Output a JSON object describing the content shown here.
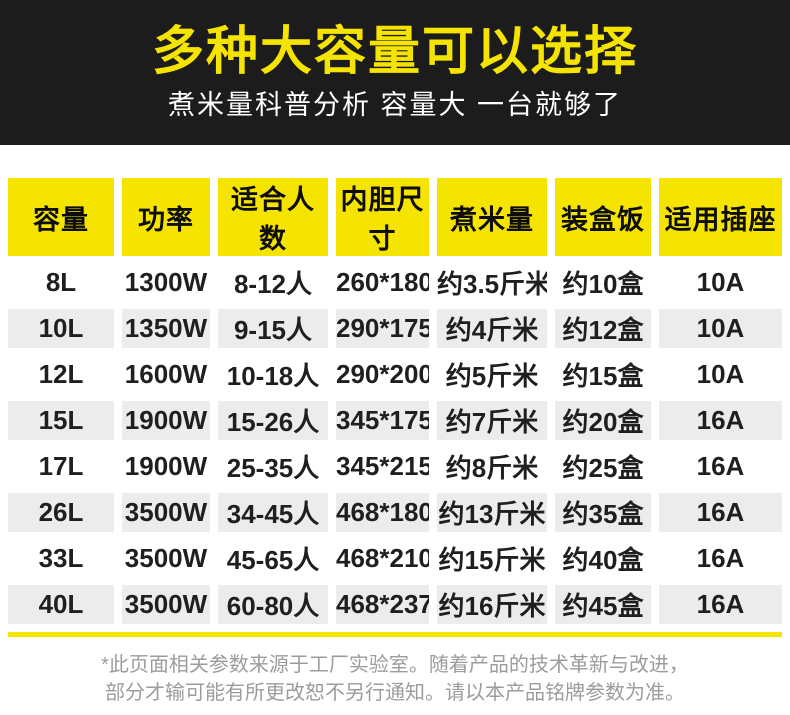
{
  "banner": {
    "title": "多种大容量可以选择",
    "subtitle": "煮米量科普分析 容量大 一台就够了",
    "bg_color": "#1c1c1c",
    "title_color": "#f5e400",
    "subtitle_color": "#ffffff"
  },
  "table": {
    "header_bg_color": "#f5e400",
    "alt_row_color": "#ececec",
    "columns": [
      "容量",
      "功率",
      "适合人数",
      "内胆尺寸",
      "煮米量",
      "装盒饭",
      "适用插座"
    ],
    "rows": [
      [
        "8L",
        "1300W",
        "8-12人",
        "260*180",
        "约3.5斤米",
        "约10盒",
        "10A"
      ],
      [
        "10L",
        "1350W",
        "9-15人",
        "290*175",
        "约4斤米",
        "约12盒",
        "10A"
      ],
      [
        "12L",
        "1600W",
        "10-18人",
        "290*200",
        "约5斤米",
        "约15盒",
        "10A"
      ],
      [
        "15L",
        "1900W",
        "15-26人",
        "345*175",
        "约7斤米",
        "约20盒",
        "16A"
      ],
      [
        "17L",
        "1900W",
        "25-35人",
        "345*215",
        "约8斤米",
        "约25盒",
        "16A"
      ],
      [
        "26L",
        "3500W",
        "34-45人",
        "468*180",
        "约13斤米",
        "约35盒",
        "16A"
      ],
      [
        "33L",
        "3500W",
        "45-65人",
        "468*210",
        "约15斤米",
        "约40盒",
        "16A"
      ],
      [
        "40L",
        "3500W",
        "60-80人",
        "468*237",
        "约16斤米",
        "约45盒",
        "16A"
      ]
    ]
  },
  "footer": {
    "line1": "*此页面相关参数来源于工厂实验室。随着产品的技术革新与改进，",
    "line2": "部分才输可能有所更改恕不另行通知。请以本产品铭牌参数为准。"
  }
}
